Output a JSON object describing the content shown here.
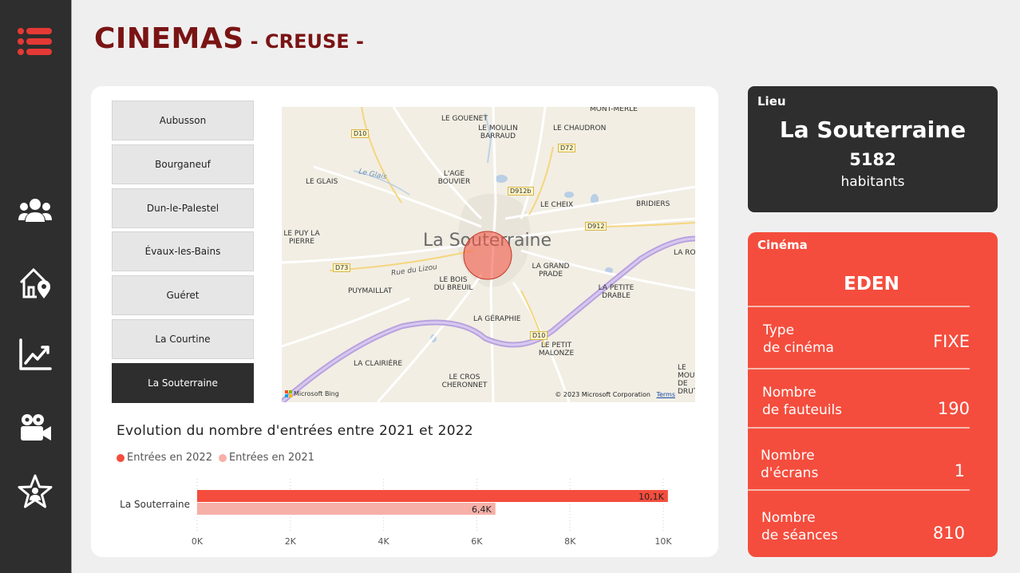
{
  "header": {
    "title": "CINEMAS",
    "subtitle": "- CREUSE -"
  },
  "sidebar": {
    "icons": [
      "menu-icon",
      "people-icon",
      "home-location-icon",
      "trend-chart-icon",
      "video-camera-icon",
      "star-person-icon"
    ]
  },
  "cities": [
    "Aubusson",
    "Bourganeuf",
    "Dun-le-Palestel",
    "Évaux-les-Bains",
    "Guéret",
    "La Courtine",
    "La Souterraine"
  ],
  "selected_city": "La Souterraine",
  "map": {
    "center_label": "La Souterraine",
    "places": [
      "LE GOUENET",
      "LE MOULIN BARRAUD",
      "LE CHAUDRON",
      "MONT-MERLE",
      "L'AGE BOUVIER",
      "LE GLAIS",
      "LE CHEIX",
      "BRIDIERS",
      "LE PUY LA PIERRE",
      "LA GRAND PRADE",
      "LE BOIS DU BREUIL",
      "PUYMAILLAT",
      "LA PETITE DRABLE",
      "LA GÉRAPHIE",
      "LE PETIT MALONZE",
      "LA CLAIRIÈRE",
      "LE CROS CHERONNET",
      "LA RO",
      "LE MOULI DE DRUT",
      "Le Glais",
      "Rue du Lizou"
    ],
    "roads": [
      "D10",
      "D72",
      "D912b",
      "D912",
      "D73",
      "D10"
    ],
    "attribution": "Microsoft Bing",
    "copyright": "© 2023 Microsoft Corporation",
    "terms": "Terms"
  },
  "chart_title": "Evolution du nombre d'entrées entre 2021 et 2022",
  "chart_data": {
    "type": "bar",
    "orientation": "horizontal",
    "categories": [
      "La Souterraine"
    ],
    "series": [
      {
        "name": "Entrées en 2022",
        "values": [
          10100
        ],
        "label": "10,1K",
        "color": "#f44d3d"
      },
      {
        "name": "Entrées en 2021",
        "values": [
          6400
        ],
        "label": "6,4K",
        "color": "#f6b0a8"
      }
    ],
    "xlim": [
      0,
      10000
    ],
    "xticks": [
      "0K",
      "2K",
      "4K",
      "6K",
      "8K",
      "10K"
    ],
    "grid": true,
    "legend": "top-left"
  },
  "lieu": {
    "label": "Lieu",
    "city": "La Souterraine",
    "population": "5182",
    "population_label": "habitants"
  },
  "cinema": {
    "label": "Cinéma",
    "name": "EDEN",
    "rows": [
      {
        "k1": "Type",
        "k2": "de cinéma",
        "v": "FIXE"
      },
      {
        "k1": "Nombre",
        "k2": "de fauteuils",
        "v": "190"
      },
      {
        "k1": "Nombre",
        "k2": "d'écrans",
        "v": "1"
      },
      {
        "k1": "Nombre",
        "k2": "de séances",
        "v": "810"
      }
    ]
  },
  "colors": {
    "sidebar": "#2e2e2e",
    "accent": "#f44d3d",
    "title": "#7a1414",
    "light_bar": "#f6b0a8"
  }
}
